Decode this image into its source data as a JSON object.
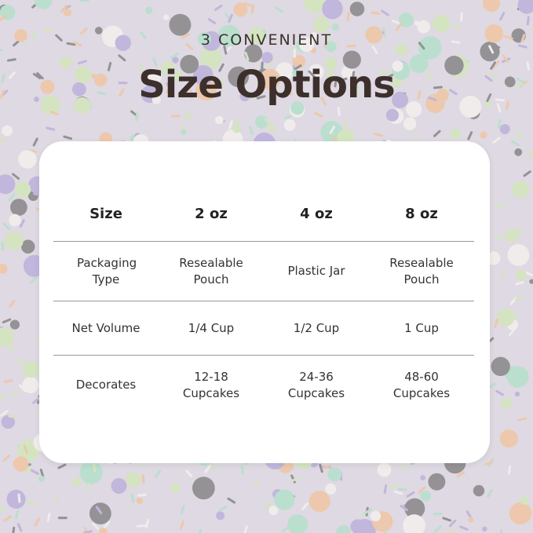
{
  "header": {
    "subtitle": "3 CONVENIENT",
    "title": "Size Options"
  },
  "table": {
    "columns": [
      "Size",
      "2 oz",
      "4 oz",
      "8 oz"
    ],
    "rows": [
      [
        "Packaging Type",
        "Resealable Pouch",
        "Plastic Jar",
        "Resealable Pouch"
      ],
      [
        "Net Volume",
        "1/4 Cup",
        "1/2 Cup",
        "1 Cup"
      ],
      [
        "Decorates",
        "12-18 Cupcakes",
        "24-36 Cupcakes",
        "48-60 Cupcakes"
      ]
    ]
  },
  "colors": {
    "title": "#3d302c",
    "sprinkles": [
      "#8e7bc8",
      "#b9e089",
      "#f0a35e",
      "#2a2a2a",
      "#f5f2ea",
      "#7fd4a8"
    ]
  }
}
